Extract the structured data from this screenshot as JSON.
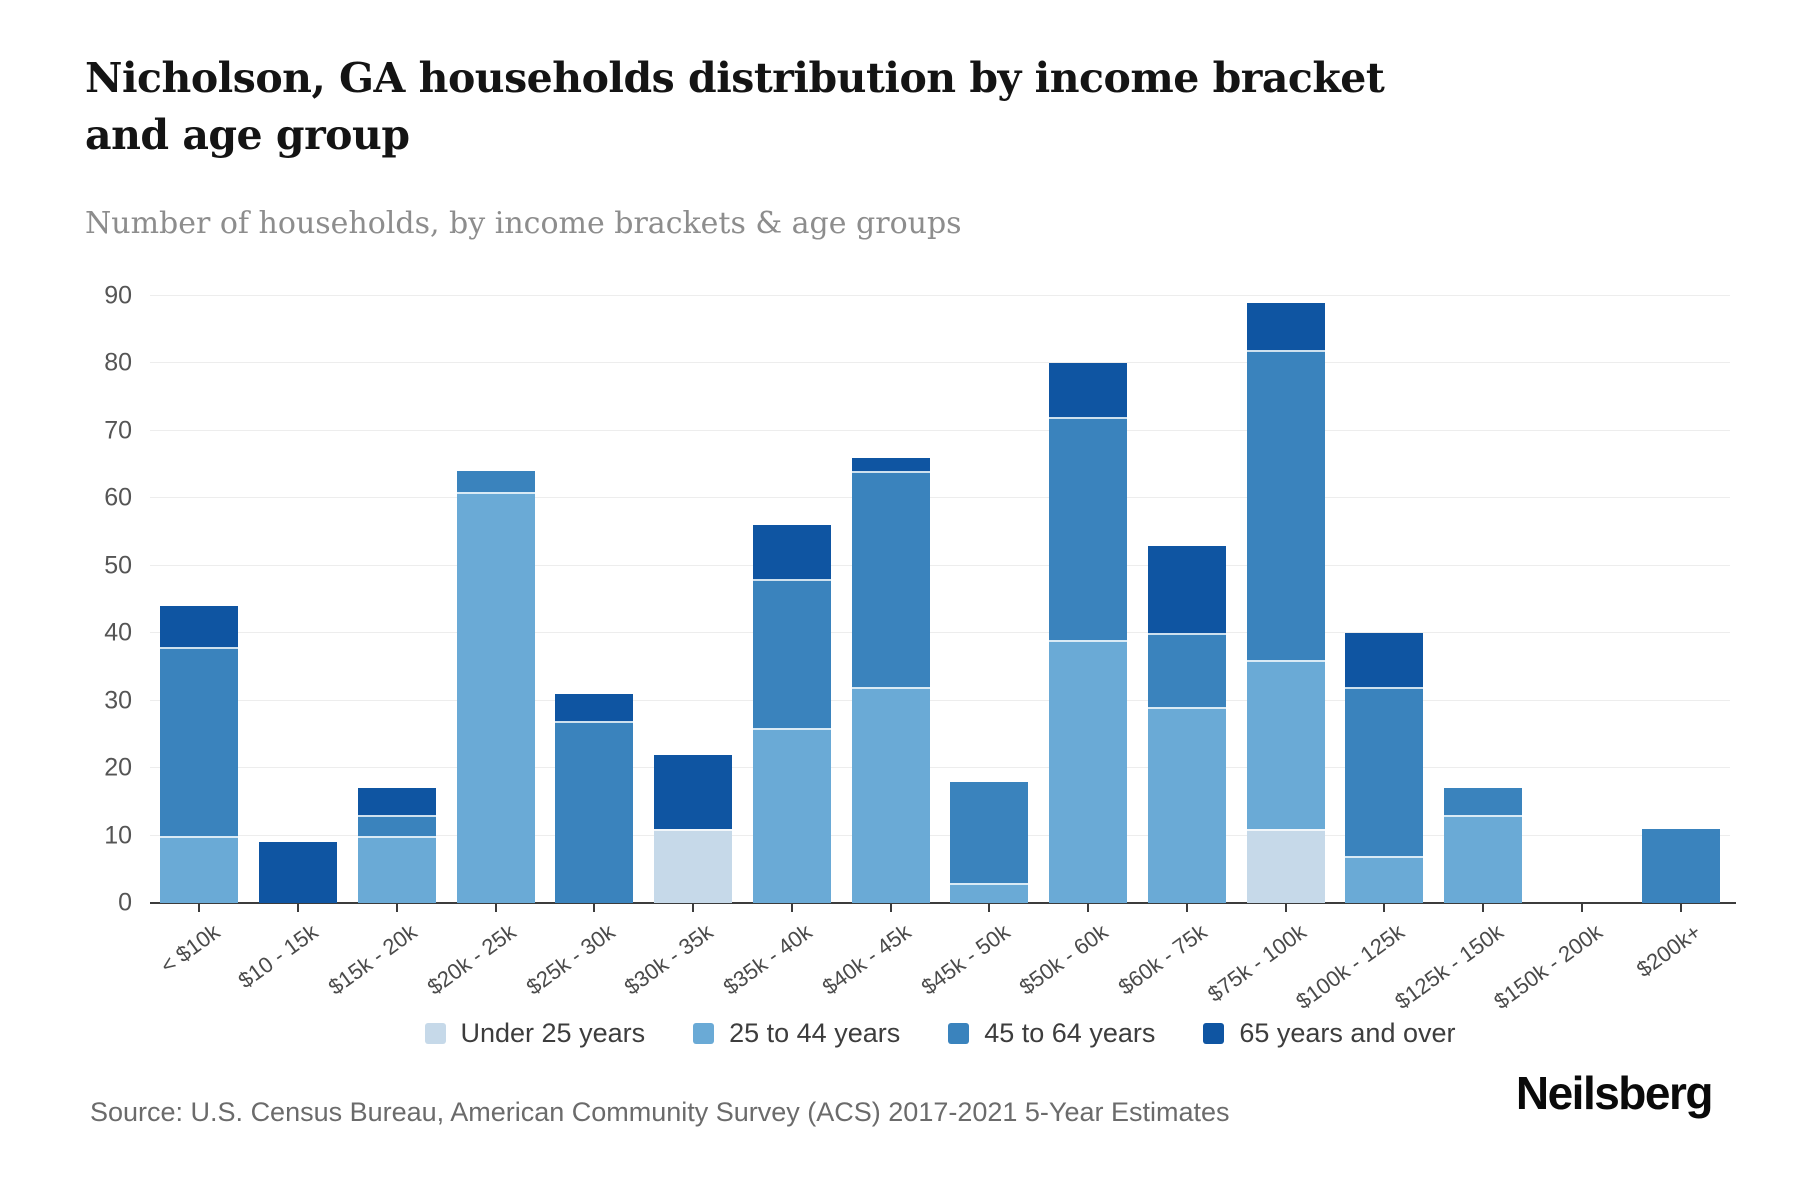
{
  "header": {
    "title": "Nicholson, GA households distribution by income bracket and age group",
    "subtitle": "Number of households, by income brackets & age groups"
  },
  "footer": {
    "source": "Source: U.S. Census Bureau, American Community Survey (ACS) 2017-2021 5-Year Estimates",
    "logo": "Neilsberg"
  },
  "chart_data": {
    "type": "bar",
    "stacked": true,
    "title": "Nicholson, GA households distribution by income bracket and age group",
    "subtitle": "Number of households, by income brackets & age groups",
    "xlabel": "",
    "ylabel": "",
    "ylim": [
      0,
      90
    ],
    "yticks": [
      0,
      10,
      20,
      30,
      40,
      50,
      60,
      70,
      80,
      90
    ],
    "grid": "horizontal",
    "legend_position": "bottom",
    "categories": [
      "< $10k",
      "$10 - 15k",
      "$15k - 20k",
      "$20k - 25k",
      "$25k - 30k",
      "$30k - 35k",
      "$35k - 40k",
      "$40k - 45k",
      "$45k - 50k",
      "$50k - 60k",
      "$60k - 75k",
      "$75k - 100k",
      "$100k - 125k",
      "$125k - 150k",
      "$150k - 200k",
      "$200k+"
    ],
    "series": [
      {
        "name": "Under 25 years",
        "color": "#c6d9e9",
        "values": [
          0,
          0,
          0,
          0,
          0,
          11,
          0,
          0,
          0,
          0,
          0,
          11,
          0,
          0,
          0,
          0
        ]
      },
      {
        "name": "25 to 44 years",
        "color": "#6aaad6",
        "values": [
          10,
          0,
          10,
          61,
          0,
          0,
          26,
          32,
          3,
          39,
          29,
          25,
          7,
          13,
          0,
          0
        ]
      },
      {
        "name": "45 to 64 years",
        "color": "#3a83bd",
        "values": [
          28,
          0,
          3,
          3,
          27,
          0,
          22,
          32,
          15,
          33,
          11,
          46,
          25,
          4,
          0,
          11
        ]
      },
      {
        "name": "65 years and over",
        "color": "#0f55a2",
        "values": [
          6,
          9,
          4,
          0,
          4,
          11,
          8,
          2,
          0,
          8,
          13,
          7,
          8,
          0,
          0,
          0
        ]
      }
    ],
    "totals": [
      44,
      9,
      17,
      64,
      31,
      22,
      56,
      66,
      18,
      80,
      53,
      89,
      40,
      17,
      0,
      11
    ]
  }
}
